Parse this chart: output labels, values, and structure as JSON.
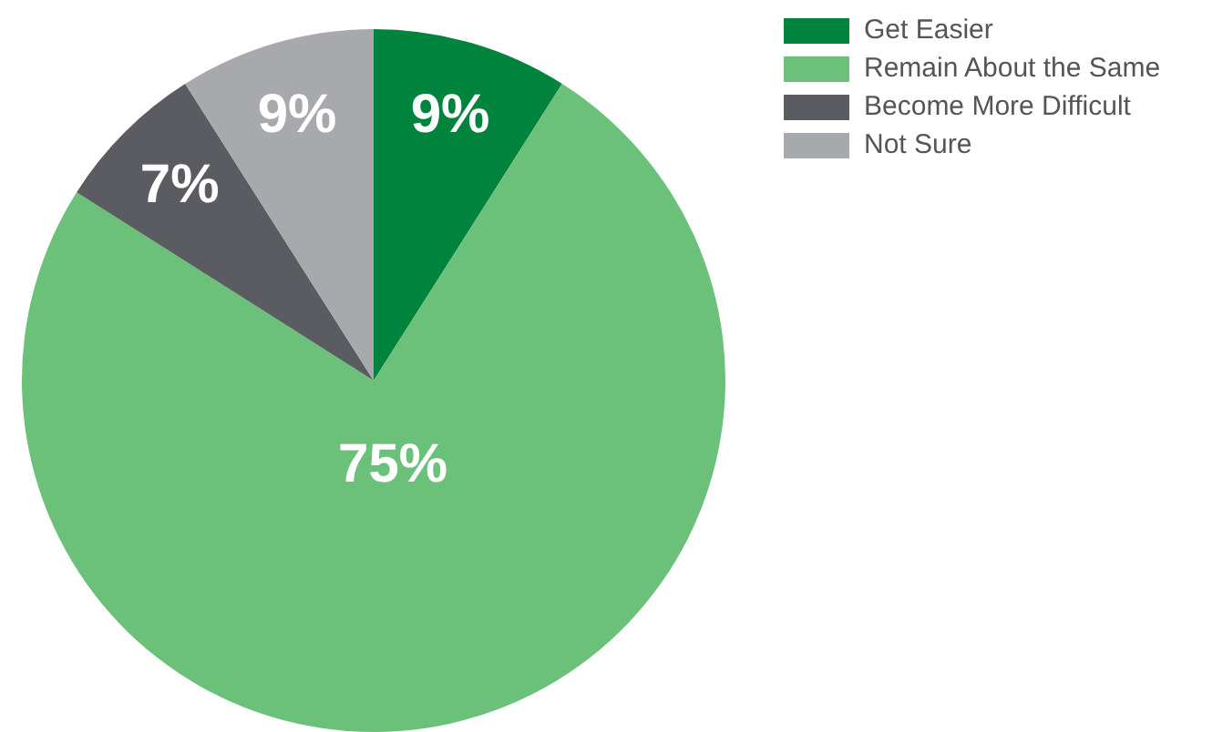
{
  "chart_data": {
    "type": "pie",
    "categories": [
      "Get Easier",
      "Remain About the Same",
      "Become More Difficult",
      "Not Sure"
    ],
    "values": [
      9,
      75,
      7,
      9
    ],
    "value_labels": [
      "9%",
      "75%",
      "7%",
      "9%"
    ],
    "colors": [
      "#00843d",
      "#6cc17a",
      "#5b5c61",
      "#a7a9ac"
    ],
    "legend": "top right"
  }
}
